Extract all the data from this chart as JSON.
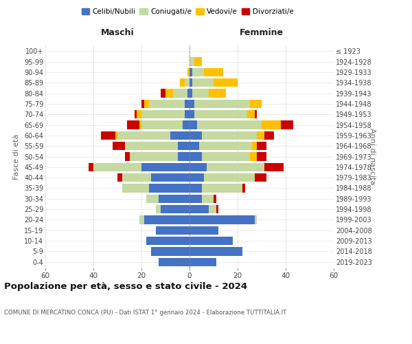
{
  "age_groups": [
    "0-4",
    "5-9",
    "10-14",
    "15-19",
    "20-24",
    "25-29",
    "30-34",
    "35-39",
    "40-44",
    "45-49",
    "50-54",
    "55-59",
    "60-64",
    "65-69",
    "70-74",
    "75-79",
    "80-84",
    "85-89",
    "90-94",
    "95-99",
    "100+"
  ],
  "birth_years": [
    "2019-2023",
    "2014-2018",
    "2009-2013",
    "2004-2008",
    "1999-2003",
    "1994-1998",
    "1989-1993",
    "1984-1988",
    "1979-1983",
    "1974-1978",
    "1969-1973",
    "1964-1968",
    "1959-1963",
    "1954-1958",
    "1949-1953",
    "1944-1948",
    "1939-1943",
    "1934-1938",
    "1929-1933",
    "1924-1928",
    "≤ 1923"
  ],
  "colors": {
    "celibe": "#4472c4",
    "coniugato": "#c5d9a0",
    "vedovo": "#ffc000",
    "divorziato": "#cc0000"
  },
  "maschi": {
    "celibe": [
      13,
      16,
      18,
      14,
      19,
      12,
      13,
      17,
      16,
      20,
      5,
      5,
      8,
      3,
      2,
      2,
      1,
      0,
      0,
      0,
      0
    ],
    "coniugato": [
      0,
      0,
      0,
      0,
      2,
      2,
      5,
      11,
      12,
      20,
      20,
      22,
      22,
      17,
      18,
      15,
      6,
      2,
      0,
      0,
      0
    ],
    "vedovo": [
      0,
      0,
      0,
      0,
      0,
      0,
      0,
      0,
      0,
      0,
      0,
      0,
      1,
      1,
      2,
      2,
      3,
      2,
      1,
      0,
      0
    ],
    "divorziato": [
      0,
      0,
      0,
      0,
      0,
      0,
      0,
      0,
      2,
      2,
      2,
      5,
      6,
      5,
      1,
      1,
      2,
      0,
      0,
      0,
      0
    ]
  },
  "femmine": {
    "nubile": [
      11,
      22,
      18,
      12,
      27,
      8,
      5,
      5,
      6,
      7,
      5,
      4,
      5,
      3,
      2,
      2,
      1,
      1,
      1,
      0,
      0
    ],
    "coniugata": [
      0,
      0,
      0,
      0,
      1,
      3,
      5,
      17,
      21,
      24,
      20,
      22,
      23,
      27,
      22,
      23,
      7,
      9,
      5,
      2,
      0
    ],
    "vedova": [
      0,
      0,
      0,
      0,
      0,
      0,
      0,
      0,
      0,
      0,
      3,
      2,
      3,
      8,
      3,
      5,
      7,
      10,
      8,
      3,
      0
    ],
    "divorziata": [
      0,
      0,
      0,
      0,
      0,
      1,
      1,
      1,
      5,
      8,
      4,
      4,
      4,
      5,
      1,
      0,
      0,
      0,
      0,
      0,
      0
    ]
  },
  "xlim": 60,
  "title": "Popolazione per età, sesso e stato civile - 2024",
  "subtitle": "COMUNE DI MERCATINO CONCA (PU) - Dati ISTAT 1° gennaio 2024 - Elaborazione TUTTITALIA.IT",
  "ylabel_left": "Fasce di età",
  "ylabel_right": "Anni di nascita",
  "xlabel_maschi": "Maschi",
  "xlabel_femmine": "Femmine"
}
